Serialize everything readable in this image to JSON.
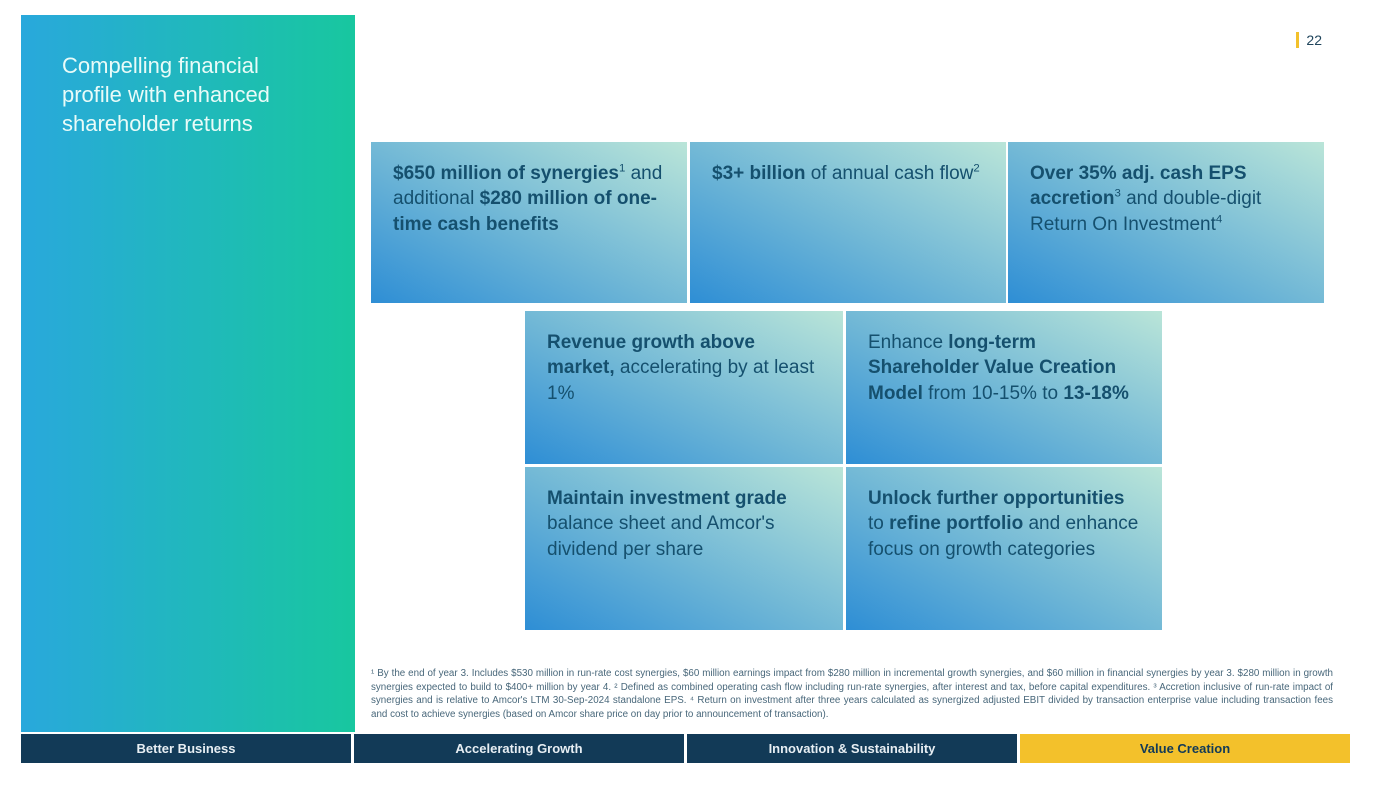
{
  "slide": {
    "page_number": "22",
    "sidebar_title": "Compelling financial profile with enhanced shareholder returns"
  },
  "cards": {
    "top": [
      {
        "segments": [
          {
            "t": "$650 million of synergies",
            "b": true
          },
          {
            "t": "1",
            "b": false,
            "sup": true
          },
          {
            "t": " and additional ",
            "b": false
          },
          {
            "t": "$280 million of one-time cash benefits",
            "b": true
          }
        ]
      },
      {
        "segments": [
          {
            "t": "$3+ billion",
            "b": true
          },
          {
            "t": " of annual cash flow",
            "b": false
          },
          {
            "t": "2",
            "b": false,
            "sup": true
          }
        ]
      },
      {
        "segments": [
          {
            "t": "Over 35% adj. cash EPS accretion",
            "b": true
          },
          {
            "t": "3",
            "b": false,
            "sup": true
          },
          {
            "t": " and double-digit Return On Investment",
            "b": false
          },
          {
            "t": "4",
            "b": false,
            "sup": true
          }
        ]
      }
    ],
    "middle": [
      {
        "segments": [
          {
            "t": "Revenue growth above market,",
            "b": true
          },
          {
            "t": " accelerating by at least 1%",
            "b": false
          }
        ]
      },
      {
        "segments": [
          {
            "t": "Enhance ",
            "b": false
          },
          {
            "t": "long-term Shareholder Value Creation Model",
            "b": true
          },
          {
            "t": " from 10-15% to ",
            "b": false
          },
          {
            "t": "13-18%",
            "b": true
          }
        ]
      }
    ],
    "bottom": [
      {
        "segments": [
          {
            "t": "Maintain investment grade",
            "b": true
          },
          {
            "t": " balance sheet and Amcor's dividend per share",
            "b": false
          }
        ]
      },
      {
        "segments": [
          {
            "t": "Unlock further opportunities",
            "b": true
          },
          {
            "t": " to ",
            "b": false
          },
          {
            "t": "refine portfolio",
            "b": true
          },
          {
            "t": " and enhance focus on growth categories",
            "b": false
          }
        ]
      }
    ]
  },
  "footnote": "¹ By the end of year 3. Includes $530 million in run-rate cost synergies, $60 million earnings impact from $280 million in incremental growth synergies, and $60 million in financial synergies by year 3. $280 million in growth synergies expected to build to $400+ million by year 4. ² Defined as combined operating cash flow including run-rate synergies, after interest and tax, before capital expenditures. ³ Accretion inclusive of run-rate impact of synergies and is relative to Amcor's LTM 30-Sep-2024 standalone EPS. ⁴ Return on investment after three years calculated as synergized adjusted EBIT divided by transaction enterprise value including transaction fees and cost to achieve synergies (based on Amcor share price on day prior to announcement of transaction).",
  "nav": {
    "items": [
      {
        "label": "Better Business",
        "active": false
      },
      {
        "label": "Accelerating Growth",
        "active": false
      },
      {
        "label": "Innovation & Sustainability",
        "active": false
      },
      {
        "label": "Value Creation",
        "active": true
      }
    ]
  },
  "colors": {
    "accent_yellow": "#F3C12B",
    "navy": "#123A57",
    "card_text": "#15506E",
    "sidebar_gradient": [
      "#29A8DC",
      "#18C79F"
    ],
    "card_gradient": [
      "#2E8ED5",
      "#BAE5D8"
    ]
  }
}
